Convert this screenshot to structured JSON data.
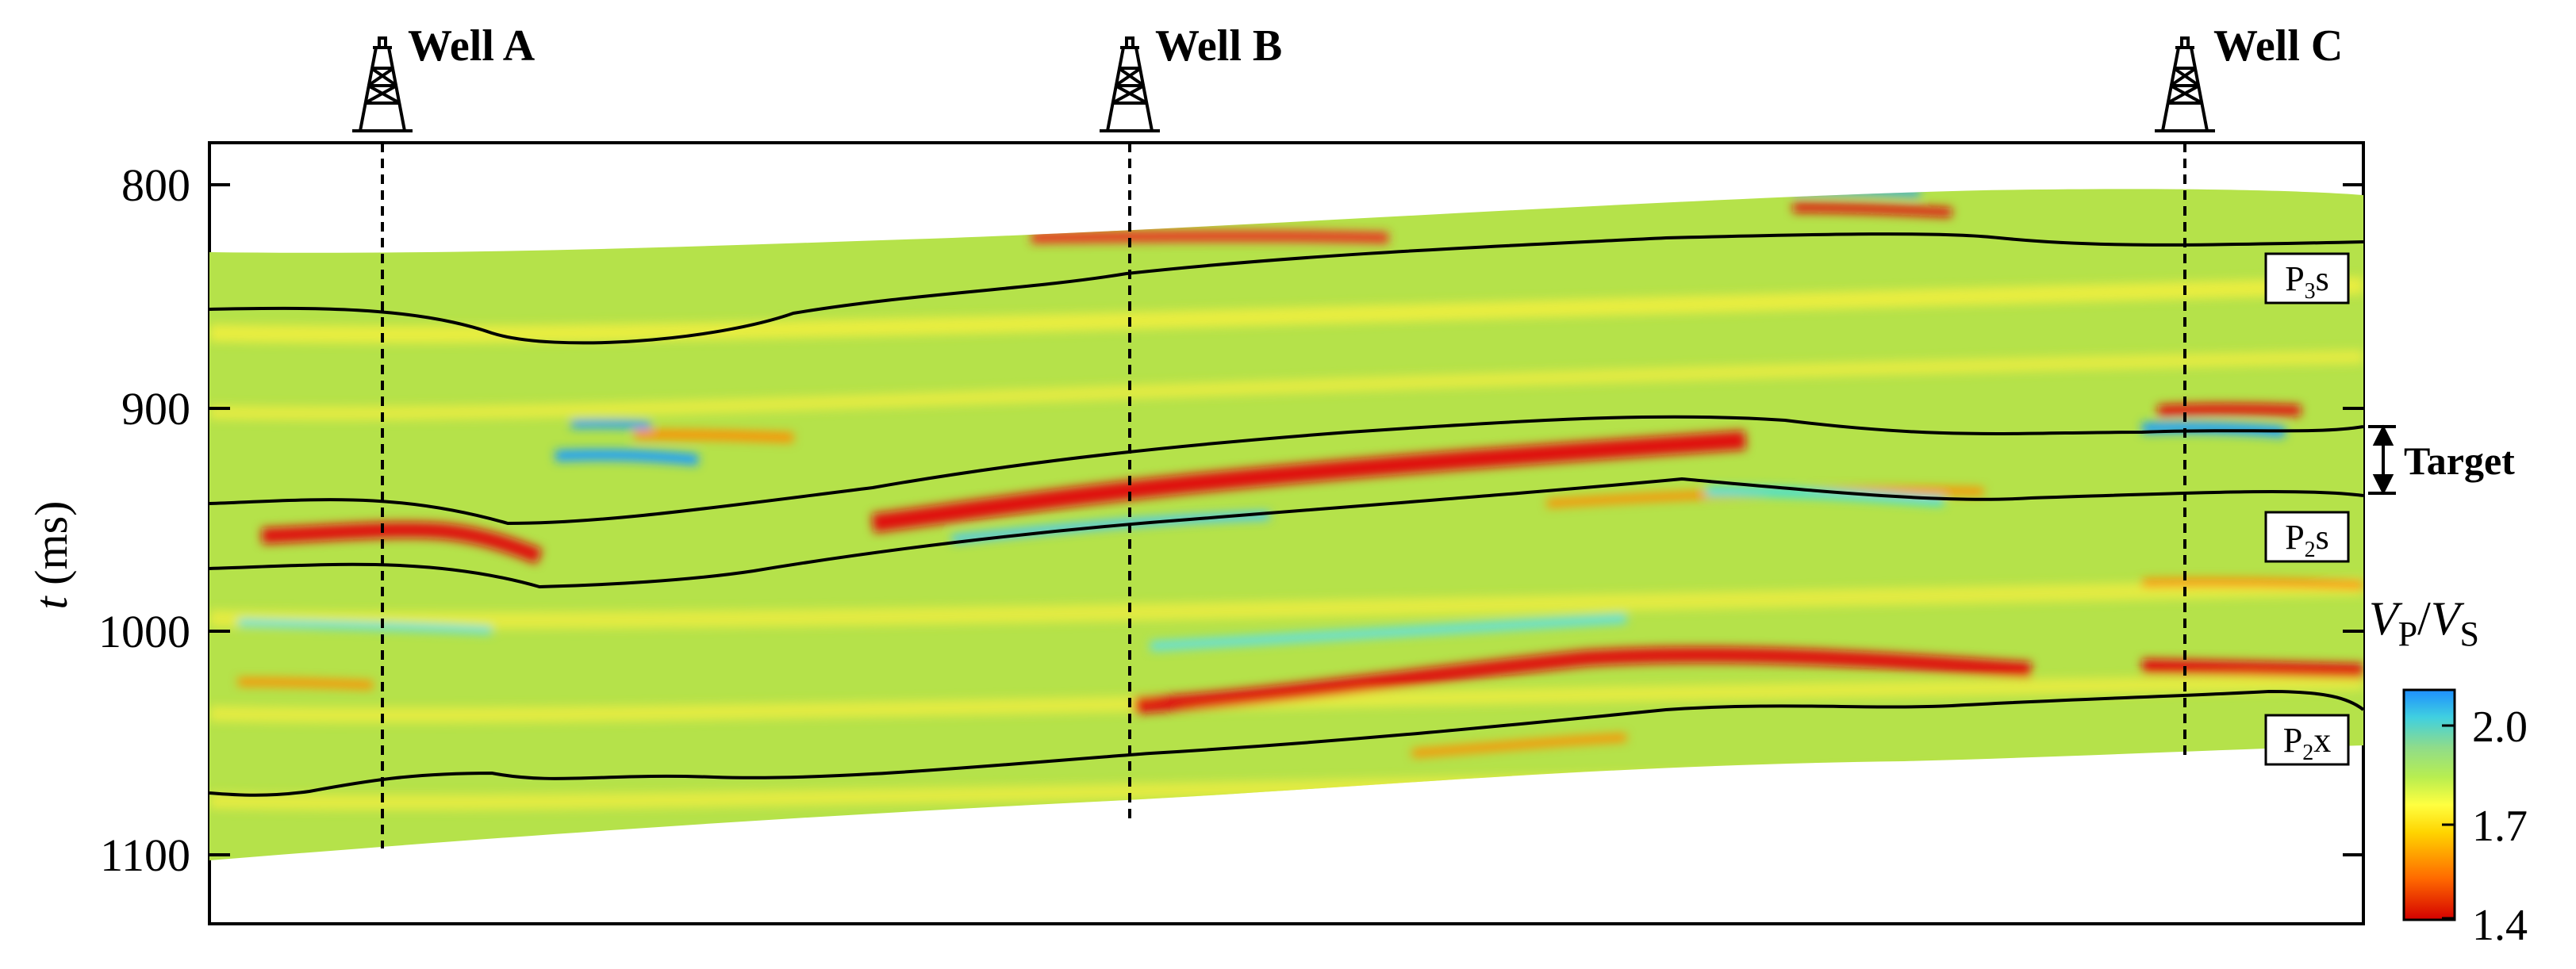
{
  "axis": {
    "ylabel_italic": "t",
    "ylabel_unit": "(ms)",
    "yticks": [
      800,
      900,
      1000,
      1100
    ],
    "ylim": [
      780,
      1130
    ]
  },
  "wells": [
    {
      "label": "Well A",
      "icon": "derrick-icon"
    },
    {
      "label": "Well B",
      "icon": "derrick-icon"
    },
    {
      "label": "Well C",
      "icon": "derrick-icon"
    }
  ],
  "horizon_labels": [
    {
      "main": "P",
      "sub": "3",
      "tail": "s"
    },
    {
      "main": "P",
      "sub": "2",
      "tail": "s"
    },
    {
      "main": "P",
      "sub": "2",
      "tail": "x"
    }
  ],
  "target_label": "Target",
  "colorbar": {
    "title_v": "V",
    "title_p": "P",
    "title_slash": "/",
    "title_s": "S",
    "ticks": [
      "2.0",
      "1.7",
      "1.4"
    ],
    "range": [
      1.4,
      2.0
    ],
    "colors": [
      "#d40000",
      "#ff6a00",
      "#ffd400",
      "#ffff40",
      "#c8f040",
      "#9ee06a",
      "#40d0e0",
      "#1e8fff"
    ]
  },
  "section_colors": {
    "background": "#b5e24a",
    "low_ratio": "#e01010",
    "mid_low": "#ff8c00",
    "high_ratio": "#1e9fff",
    "mid_high": "#40e0e0"
  }
}
